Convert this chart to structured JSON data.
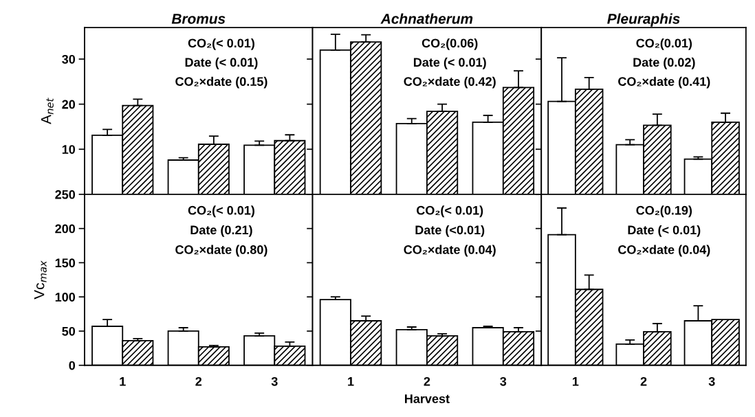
{
  "chart_data": [
    {
      "type": "bar",
      "title": "Bromus",
      "ylabel": "A$_{net}$",
      "categories": [
        "1",
        "2",
        "3"
      ],
      "ylim": [
        0,
        37
      ],
      "yticks": [
        10,
        20,
        30
      ],
      "tick_labels": "y",
      "series": [
        {
          "color": "#ffffff",
          "values": [
            13.1,
            7.6,
            10.9
          ],
          "errors": [
            [
              13.1,
              14.4
            ],
            [
              7.6,
              8.1
            ],
            [
              10.9,
              11.8
            ]
          ]
        },
        {
          "color": "#000000",
          "values": [
            19.7,
            11.1,
            11.9
          ],
          "errors": [
            [
              19.7,
              21.1
            ],
            [
              11.1,
              12.9
            ],
            [
              11.9,
              13.2
            ]
          ]
        }
      ],
      "annotations": [
        "CO₂(< 0.01)",
        "Date (< 0.01)",
        "CO₂×date (0.15)"
      ]
    },
    {
      "type": "bar",
      "title": "Achnatherum",
      "categories": [
        "1",
        "2",
        "3"
      ],
      "ylim": [
        0,
        37
      ],
      "yticks": [
        10,
        20,
        30
      ],
      "tick_labels": false,
      "series": [
        {
          "color": "#ffffff",
          "values": [
            32.0,
            15.7,
            16.0
          ],
          "errors": [
            [
              32.0,
              35.5
            ],
            [
              15.7,
              16.8
            ],
            [
              16.0,
              17.5
            ]
          ]
        },
        {
          "color": "#000000",
          "values": [
            33.8,
            18.4,
            23.7
          ],
          "errors": [
            [
              33.8,
              35.4
            ],
            [
              18.4,
              20.0
            ],
            [
              23.7,
              27.4
            ]
          ]
        }
      ],
      "annotations": [
        "CO₂(0.06)",
        "Date (< 0.01)",
        "CO₂×date (0.42)"
      ]
    },
    {
      "type": "bar",
      "title": "Pleuraphis",
      "categories": [
        "1",
        "2",
        "3"
      ],
      "ylim": [
        0,
        37
      ],
      "yticks": [
        10,
        20,
        30
      ],
      "tick_labels": false,
      "series": [
        {
          "color": "#ffffff",
          "values": [
            20.6,
            11.0,
            7.8
          ],
          "errors": [
            [
              20.6,
              30.3
            ],
            [
              11.0,
              12.1
            ],
            [
              7.8,
              8.3
            ]
          ]
        },
        {
          "color": "#000000",
          "values": [
            23.3,
            15.3,
            16.0
          ],
          "errors": [
            [
              23.3,
              25.9
            ],
            [
              15.3,
              17.8
            ],
            [
              16.0,
              18.0
            ]
          ]
        }
      ],
      "annotations": [
        "CO₂(0.01)",
        "Date (0.02)",
        "CO₂×date (0.41)"
      ]
    },
    {
      "type": "bar",
      "ylabel": "Vc$_{max}$",
      "categories": [
        "1",
        "2",
        "3"
      ],
      "ylim": [
        0,
        250
      ],
      "yticks": [
        0,
        50,
        100,
        150,
        200,
        250
      ],
      "series": [
        {
          "color": "#ffffff",
          "values": [
            57,
            50,
            43
          ],
          "errors": [
            [
              57,
              67
            ],
            [
              50,
              55
            ],
            [
              43,
              47
            ]
          ]
        },
        {
          "color": "#000000",
          "values": [
            36,
            27,
            28
          ],
          "errors": [
            [
              36,
              39
            ],
            [
              27,
              29
            ],
            [
              28,
              34
            ]
          ]
        }
      ],
      "annotations": [
        "CO₂(< 0.01)",
        "Date (0.21)",
        "CO₂×date (0.80)"
      ]
    },
    {
      "type": "bar",
      "xlabel": "Harvest",
      "categories": [
        "1",
        "2",
        "3"
      ],
      "ylim": [
        0,
        250
      ],
      "yticks": [
        0,
        50,
        100,
        150,
        200,
        250
      ],
      "tick_labels": "x",
      "series": [
        {
          "color": "#ffffff",
          "values": [
            96,
            52,
            55
          ],
          "errors": [
            [
              96,
              100
            ],
            [
              52,
              56
            ],
            [
              55,
              57
            ]
          ]
        },
        {
          "color": "#000000",
          "values": [
            65,
            43,
            49
          ],
          "errors": [
            [
              65,
              72
            ],
            [
              43,
              46
            ],
            [
              49,
              55
            ]
          ]
        }
      ],
      "annotations": [
        "CO₂(< 0.01)",
        "Date (<0.01)",
        "CO₂×date (0.04)"
      ]
    },
    {
      "type": "bar",
      "categories": [
        "1",
        "2",
        "3"
      ],
      "ylim": [
        0,
        250
      ],
      "yticks": [
        0,
        50,
        100,
        150,
        200,
        250
      ],
      "tick_labels": "x",
      "series": [
        {
          "color": "#ffffff",
          "values": [
            191,
            31,
            65
          ],
          "errors": [
            [
              191,
              230
            ],
            [
              31,
              37
            ],
            [
              65,
              87
            ]
          ]
        },
        {
          "color": "#000000",
          "values": [
            111,
            49,
            67
          ],
          "errors": [
            [
              111,
              132
            ],
            [
              49,
              61
            ],
            null
          ]
        }
      ],
      "annotations": [
        "CO₂(0.19)",
        "Date (< 0.01)",
        "CO₂×date (0.04)"
      ]
    }
  ]
}
